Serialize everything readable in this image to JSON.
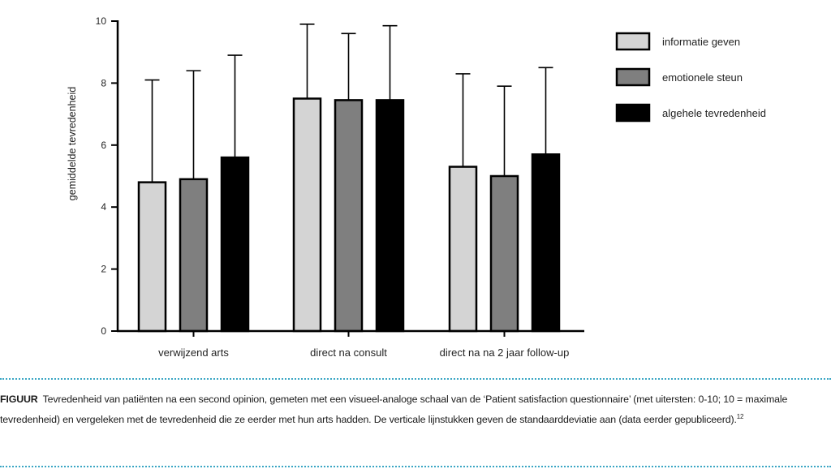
{
  "chart_data": {
    "type": "bar",
    "ylabel": "gemiddelde tevredenheid",
    "xlabel": "",
    "ylim": [
      0,
      10
    ],
    "yticks": [
      0,
      2,
      4,
      6,
      8,
      10
    ],
    "categories": [
      "verwijzend arts",
      "direct na consult",
      "direct na na 2 jaar follow-up"
    ],
    "series": [
      {
        "name": "informatie geven",
        "color": "#d4d4d4",
        "values": [
          4.8,
          7.5,
          5.3
        ],
        "sd_upper": [
          8.1,
          9.9,
          8.3
        ]
      },
      {
        "name": "emotionele steun",
        "color": "#7f7f7f",
        "values": [
          4.9,
          7.45,
          5.0
        ],
        "sd_upper": [
          8.4,
          9.6,
          7.9
        ]
      },
      {
        "name": "algehele tevredenheid",
        "color": "#000000",
        "values": [
          5.6,
          7.45,
          5.7
        ],
        "sd_upper": [
          8.9,
          9.85,
          8.5
        ]
      }
    ],
    "legend_position": "top-right",
    "grid": false
  },
  "caption": {
    "lead": "FIGUUR",
    "text": "Tevredenheid van patiënten na een second opinion, gemeten met een visueel-analoge schaal van de ‘Patient satisfaction questionnaire’ (met uitersten: 0-10; 10 = maximale tevredenheid) en vergeleken met de tevredenheid die ze eerder met hun arts hadden. De verticale lijnstukken geven de standaarddeviatie aan (data eerder gepubliceerd).",
    "ref": "12"
  },
  "colors": {
    "rule": "#3aa6c4",
    "axis": "#000000"
  }
}
